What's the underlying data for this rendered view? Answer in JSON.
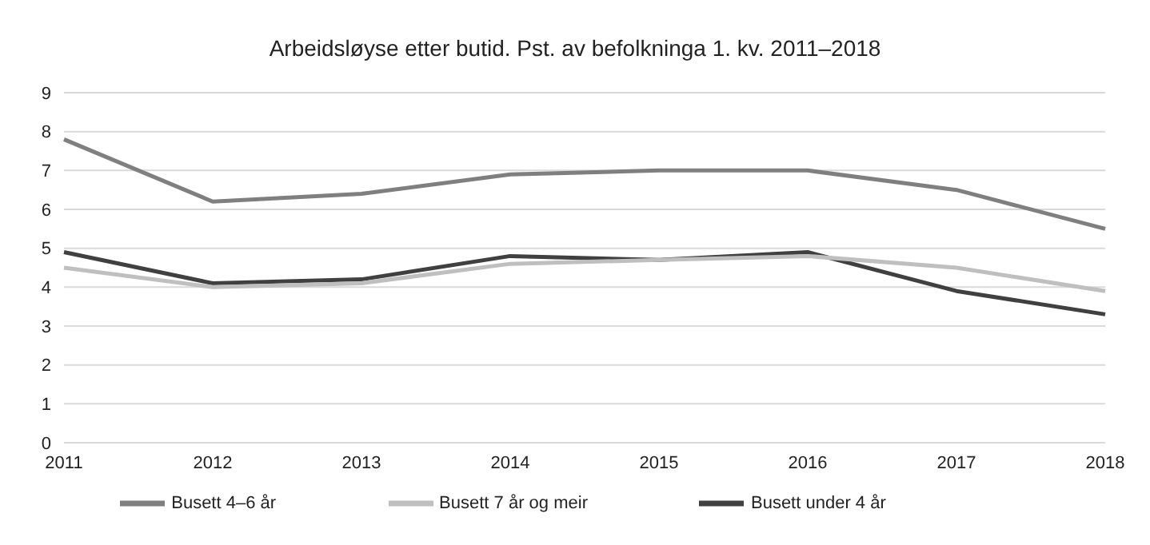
{
  "chart_data": {
    "type": "line",
    "title": "Arbeidsløyse etter butid. Pst. av befolkninga 1. kv. 2011–2018",
    "categories": [
      "2011",
      "2012",
      "2013",
      "2014",
      "2015",
      "2016",
      "2017",
      "2018"
    ],
    "series": [
      {
        "name": "Busett under 4 år",
        "color": "#404040",
        "values": [
          4.9,
          4.1,
          4.2,
          4.8,
          4.7,
          4.9,
          3.9,
          3.3
        ]
      },
      {
        "name": "Busett 4–6 år",
        "color": "#7f7f7f",
        "values": [
          7.8,
          6.2,
          6.4,
          6.9,
          7.0,
          7.0,
          6.5,
          5.5
        ]
      },
      {
        "name": "Busett 7 år og meir",
        "color": "#bfbfbf",
        "values": [
          4.5,
          4.0,
          4.1,
          4.6,
          4.7,
          4.8,
          4.5,
          3.9
        ]
      }
    ],
    "ylim": [
      0,
      9
    ],
    "yticks": [
      0,
      1,
      2,
      3,
      4,
      5,
      6,
      7,
      8,
      9
    ],
    "grid": "y",
    "legend": "bottom",
    "marker": "none",
    "line_style": "solid"
  }
}
